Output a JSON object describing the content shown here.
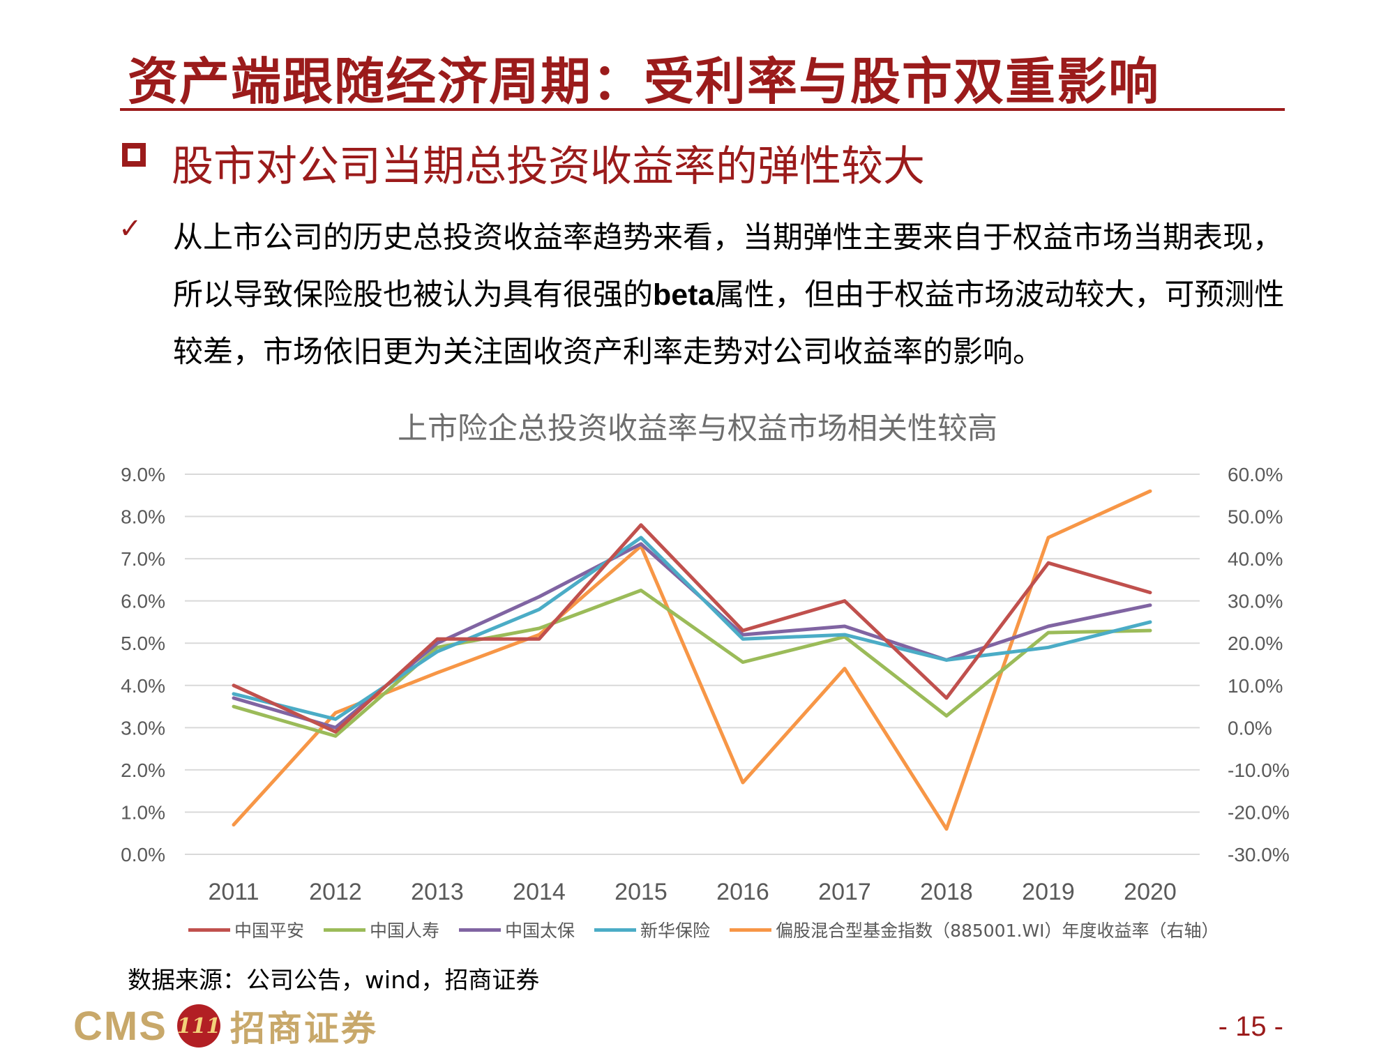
{
  "header": {
    "title": "资产端跟随经济周期：受利率与股市双重影响",
    "subheading": "股市对公司当期总投资收益率的弹性较大"
  },
  "body": {
    "part1": "从上市公司的历史总投资收益率趋势来看，当期弹性主要来自于权益市场当期表现，所以导致保险股也被认为具有很强的",
    "bold": "beta",
    "part2": "属性，但由于权益市场波动较大，可预测性较差，市场依旧更为关注固收资产利率走势对公司收益率的影响。"
  },
  "chart_data": {
    "type": "line",
    "title": "上市险企总投资收益率与权益市场相关性较高",
    "x": [
      "2011",
      "2012",
      "2013",
      "2014",
      "2015",
      "2016",
      "2017",
      "2018",
      "2019",
      "2020"
    ],
    "y_left": {
      "min": 0,
      "max": 9,
      "ticks": [
        "0.0%",
        "1.0%",
        "2.0%",
        "3.0%",
        "4.0%",
        "5.0%",
        "6.0%",
        "7.0%",
        "8.0%",
        "9.0%"
      ]
    },
    "y_right": {
      "min": -30,
      "max": 60,
      "ticks": [
        "-30.0%",
        "-20.0%",
        "-10.0%",
        "0.0%",
        "10.0%",
        "20.0%",
        "30.0%",
        "40.0%",
        "50.0%",
        "60.0%"
      ]
    },
    "series": [
      {
        "name": "中国平安",
        "axis": "left",
        "color": "#c0504d",
        "values": [
          4.0,
          2.9,
          5.1,
          5.1,
          7.8,
          5.3,
          6.0,
          3.7,
          6.9,
          6.2
        ]
      },
      {
        "name": "中国人寿",
        "axis": "left",
        "color": "#9bbb59",
        "values": [
          3.5,
          2.8,
          4.9,
          5.35,
          6.25,
          4.55,
          5.15,
          3.28,
          5.25,
          5.3
        ]
      },
      {
        "name": "中国太保",
        "axis": "left",
        "color": "#8064a2",
        "values": [
          3.7,
          3.0,
          5.0,
          6.1,
          7.35,
          5.2,
          5.4,
          4.6,
          5.4,
          5.9
        ]
      },
      {
        "name": "新华保险",
        "axis": "left",
        "color": "#4bacc6",
        "values": [
          3.8,
          3.2,
          4.8,
          5.8,
          7.5,
          5.1,
          5.2,
          4.6,
          4.9,
          5.5
        ]
      },
      {
        "name": "偏股混合型基金指数（885001.WI）年度收益率（右轴）",
        "axis": "right",
        "color": "#f79646",
        "values": [
          -23,
          3.5,
          13,
          22,
          43,
          -13,
          14,
          -24,
          45,
          56
        ]
      }
    ],
    "grid": true,
    "legend": "bottom"
  },
  "footer": {
    "source": "数据来源：公司公告，wind，招商证券",
    "logo_text": "CMS",
    "logo_seal": "111",
    "logo_name": "招商证券",
    "page": "- 15 -"
  },
  "colors": {
    "accent": "#9b1b1b",
    "gold": "#c8a86a"
  }
}
